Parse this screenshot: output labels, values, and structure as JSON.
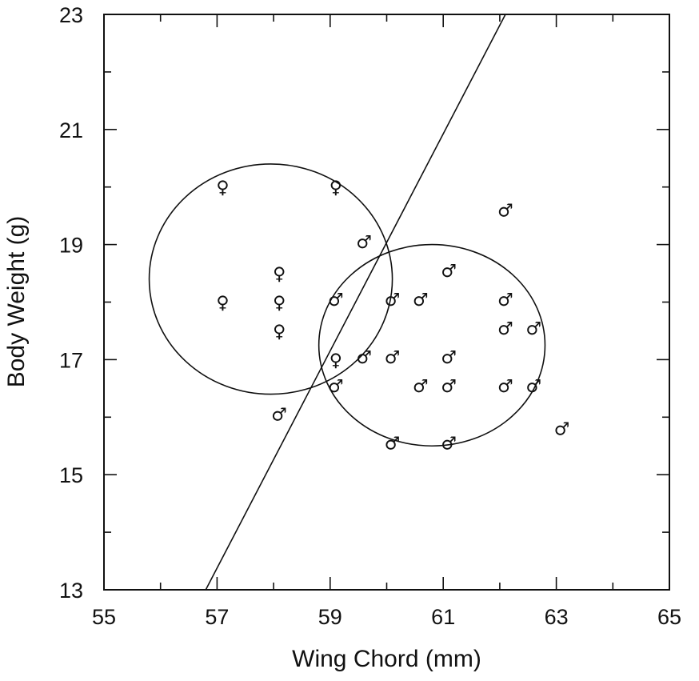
{
  "chart_data": {
    "type": "scatter",
    "title": "",
    "xlabel": "Wing Chord (mm)",
    "ylabel": "Body Weight (g)",
    "xlim": [
      55,
      65
    ],
    "ylim": [
      13,
      23
    ],
    "x_ticks": [
      55,
      57,
      59,
      61,
      63,
      65
    ],
    "y_ticks": [
      13,
      15,
      17,
      19,
      21,
      23
    ],
    "grid": false,
    "series": [
      {
        "marker": "♀",
        "points": [
          {
            "x": 57.1,
            "y": 20.0
          },
          {
            "x": 59.1,
            "y": 20.0
          },
          {
            "x": 58.1,
            "y": 18.5
          },
          {
            "x": 57.1,
            "y": 18.0
          },
          {
            "x": 58.1,
            "y": 18.0
          },
          {
            "x": 58.1,
            "y": 17.5
          },
          {
            "x": 59.1,
            "y": 17.0
          }
        ]
      },
      {
        "marker": "♂",
        "points": [
          {
            "x": 62.1,
            "y": 19.6
          },
          {
            "x": 59.6,
            "y": 19.05
          },
          {
            "x": 61.1,
            "y": 18.55
          },
          {
            "x": 59.1,
            "y": 18.05
          },
          {
            "x": 60.1,
            "y": 18.05
          },
          {
            "x": 60.6,
            "y": 18.05
          },
          {
            "x": 62.1,
            "y": 18.05
          },
          {
            "x": 62.1,
            "y": 17.55
          },
          {
            "x": 62.6,
            "y": 17.55
          },
          {
            "x": 59.6,
            "y": 17.05
          },
          {
            "x": 60.1,
            "y": 17.05
          },
          {
            "x": 61.1,
            "y": 17.05
          },
          {
            "x": 59.1,
            "y": 16.55
          },
          {
            "x": 60.6,
            "y": 16.55
          },
          {
            "x": 61.1,
            "y": 16.55
          },
          {
            "x": 62.1,
            "y": 16.55
          },
          {
            "x": 62.6,
            "y": 16.55
          },
          {
            "x": 58.1,
            "y": 16.05
          },
          {
            "x": 63.1,
            "y": 15.8
          },
          {
            "x": 60.1,
            "y": 15.55
          },
          {
            "x": 61.1,
            "y": 15.55
          }
        ]
      }
    ],
    "ellipses": [
      {
        "cx": 57.95,
        "cy": 18.4,
        "rx": 2.15,
        "ry": 2.0
      },
      {
        "cx": 60.8,
        "cy": 17.25,
        "rx": 2.0,
        "ry": 1.75
      }
    ],
    "lines": [
      {
        "x1": 56.8,
        "y1": 13.0,
        "x2": 62.1,
        "y2": 23.0
      }
    ]
  }
}
